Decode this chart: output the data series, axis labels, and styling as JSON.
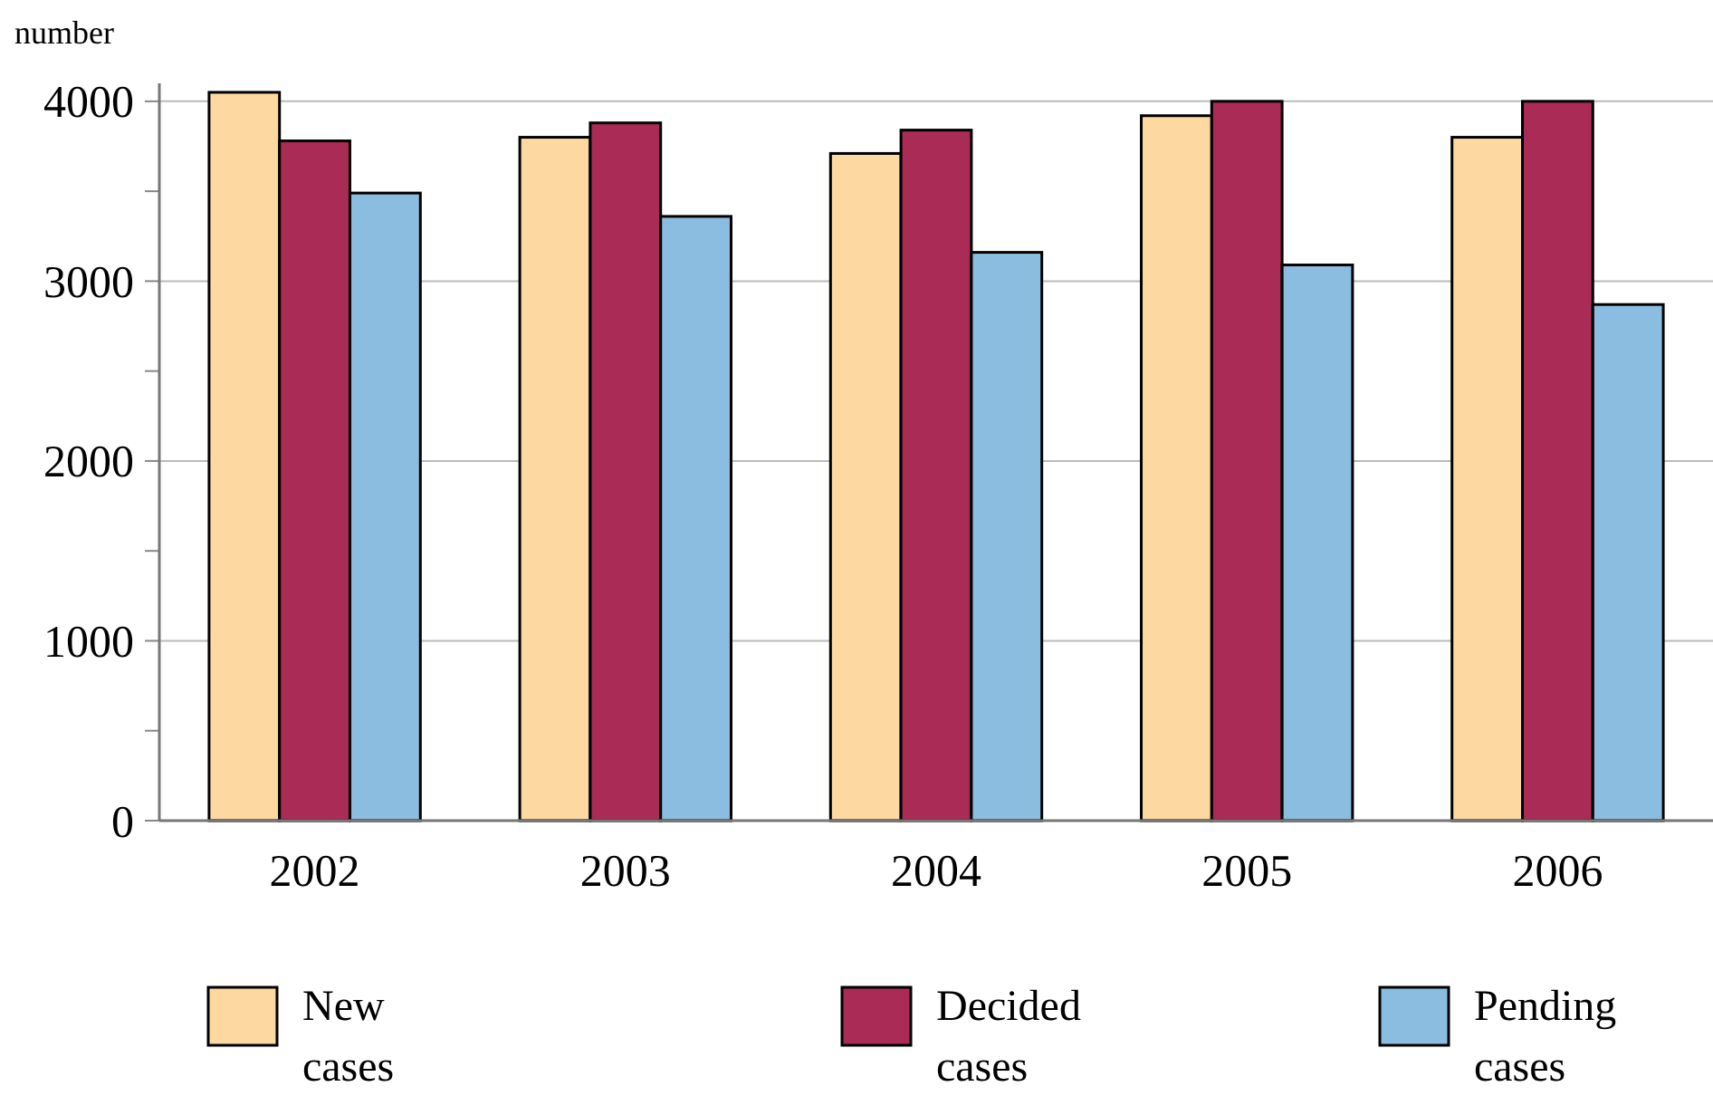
{
  "chart_data": {
    "type": "bar",
    "ylabel": "number",
    "categories": [
      "2002",
      "2003",
      "2004",
      "2005",
      "2006"
    ],
    "series": [
      {
        "name": "New cases",
        "color": "#fdd8a0",
        "values": [
          4050,
          3800,
          3710,
          3920,
          3800
        ]
      },
      {
        "name": "Decided cases",
        "color": "#aa2b55",
        "values": [
          3780,
          3880,
          3840,
          4000,
          4000
        ]
      },
      {
        "name": "Pending cases",
        "color": "#8bbde0",
        "values": [
          3490,
          3360,
          3160,
          3090,
          2870
        ]
      }
    ],
    "ylim": [
      0,
      4100
    ],
    "yticks": [
      0,
      {
        "value": 500,
        "label": null
      },
      1000,
      {
        "value": 1500,
        "label": null
      },
      2000,
      {
        "value": 2500,
        "label": null
      },
      3000,
      {
        "value": 3500,
        "label": null
      },
      4000
    ],
    "grid": "y",
    "legend": "bottom"
  }
}
